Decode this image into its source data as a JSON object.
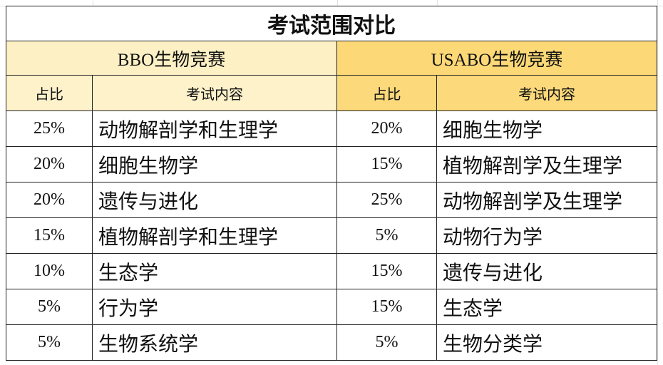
{
  "title": "考试范围对比",
  "groups": [
    {
      "name": "BBO生物竞赛",
      "headers": [
        "占比",
        "考试内容"
      ]
    },
    {
      "name": "USABO生物竞赛",
      "headers": [
        "占比",
        "考试内容"
      ]
    }
  ],
  "rows": [
    [
      "25%",
      "动物解剖学和生理学",
      "20%",
      "细胞生物学"
    ],
    [
      "20%",
      "细胞生物学",
      "15%",
      "植物解剖学及生理学"
    ],
    [
      "20%",
      "遗传与进化",
      "25%",
      "动物解剖学及生理学"
    ],
    [
      "15%",
      "植物解剖学和生理学",
      "5%",
      "动物行为学"
    ],
    [
      "10%",
      "生态学",
      "15%",
      "遗传与进化"
    ],
    [
      "5%",
      "行为学",
      "15%",
      "生态学"
    ],
    [
      "5%",
      "生物系统学",
      "5%",
      "生物分类学"
    ]
  ]
}
